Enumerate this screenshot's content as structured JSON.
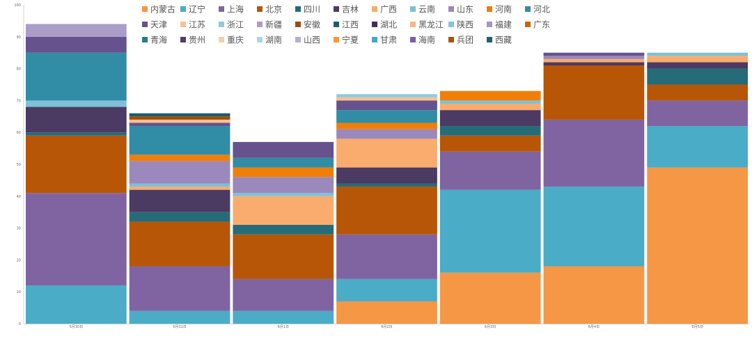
{
  "chart_data": {
    "type": "bar",
    "stacked": true,
    "categories": [
      "5月30日",
      "5月31日",
      "6月1日",
      "6月2日",
      "6月3日",
      "6月4日",
      "6月5日"
    ],
    "ylim": [
      0,
      100
    ],
    "yticks": [
      0,
      10,
      20,
      30,
      40,
      50,
      60,
      70,
      80,
      90,
      100
    ],
    "grid": false,
    "legend_position": "top",
    "series": [
      {
        "name": "内蒙古",
        "color": "#f59745",
        "values": [
          0,
          0,
          0,
          7,
          16,
          18,
          49
        ]
      },
      {
        "name": "辽宁",
        "color": "#4aacc6",
        "values": [
          12,
          4,
          4,
          7,
          26,
          25,
          13
        ]
      },
      {
        "name": "上海",
        "color": "#8064a2",
        "values": [
          29,
          14,
          10,
          14,
          12,
          21,
          8
        ]
      },
      {
        "name": "北京",
        "color": "#b75606",
        "values": [
          18,
          14,
          14,
          15,
          5,
          17,
          5
        ]
      },
      {
        "name": "四川",
        "color": "#266b78",
        "values": [
          1,
          3,
          3,
          1,
          3,
          0,
          5
        ]
      },
      {
        "name": "吉林",
        "color": "#4b3a62",
        "values": [
          8,
          7,
          0,
          5,
          5,
          1,
          2
        ]
      },
      {
        "name": "广西",
        "color": "#f9ac6e",
        "values": [
          0,
          1,
          9,
          9,
          2,
          1,
          2
        ]
      },
      {
        "name": "云南",
        "color": "#7ec0d7",
        "values": [
          2,
          1,
          1,
          0,
          1,
          0,
          1
        ]
      },
      {
        "name": "山东",
        "color": "#9b88bc",
        "values": [
          0,
          7,
          5,
          3,
          0,
          1,
          0
        ]
      },
      {
        "name": "河南",
        "color": "#f07f09",
        "values": [
          0,
          2,
          3,
          2,
          3,
          0,
          0
        ]
      },
      {
        "name": "河北",
        "color": "#318ca5",
        "values": [
          15,
          9,
          3,
          4,
          0,
          0,
          0
        ]
      },
      {
        "name": "天津",
        "color": "#66528c",
        "values": [
          5,
          1,
          5,
          3,
          0,
          1,
          0
        ]
      },
      {
        "name": "江苏",
        "color": "#fbc08e",
        "values": [
          0,
          1,
          0,
          1,
          0,
          0,
          0
        ]
      },
      {
        "name": "浙江",
        "color": "#8ccbe0",
        "values": [
          0,
          0,
          0,
          1,
          0,
          0,
          0
        ]
      },
      {
        "name": "新疆",
        "color": "#ac9cc8",
        "values": [
          4,
          0,
          0,
          0,
          0,
          0,
          0
        ]
      },
      {
        "name": "安徽",
        "color": "#a04c08",
        "values": [
          0,
          1,
          0,
          0,
          0,
          0,
          0
        ]
      },
      {
        "name": "江西",
        "color": "#1f5c69",
        "values": [
          0,
          1,
          0,
          0,
          0,
          0,
          0
        ]
      },
      {
        "name": "湖北",
        "color": "#3d2f54",
        "values": [
          0,
          0,
          0,
          0,
          0,
          0,
          0
        ]
      },
      {
        "name": "黑龙江",
        "color": "#f8b48a",
        "values": [
          0,
          0,
          0,
          0,
          0,
          0,
          0
        ]
      },
      {
        "name": "陕西",
        "color": "#82c6d6",
        "values": [
          0,
          0,
          0,
          0,
          0,
          0,
          0
        ]
      },
      {
        "name": "福建",
        "color": "#a694c7",
        "values": [
          0,
          0,
          0,
          0,
          0,
          0,
          0
        ]
      },
      {
        "name": "广东",
        "color": "#c96508",
        "values": [
          0,
          0,
          0,
          0,
          0,
          0,
          0
        ]
      },
      {
        "name": "青海",
        "color": "#2a7c84",
        "values": [
          0,
          0,
          0,
          0,
          0,
          0,
          0
        ]
      },
      {
        "name": "贵州",
        "color": "#503c66",
        "values": [
          0,
          0,
          0,
          0,
          0,
          0,
          0
        ]
      },
      {
        "name": "重庆",
        "color": "#f7cfa8",
        "values": [
          0,
          0,
          0,
          0,
          0,
          0,
          0
        ]
      },
      {
        "name": "湖南",
        "color": "#a9d6e6",
        "values": [
          0,
          0,
          0,
          0,
          0,
          0,
          0
        ]
      },
      {
        "name": "山西",
        "color": "#b7acd4",
        "values": [
          0,
          0,
          0,
          0,
          0,
          0,
          0
        ]
      },
      {
        "name": "宁夏",
        "color": "#f59a3c",
        "values": [
          0,
          0,
          0,
          0,
          0,
          0,
          0
        ]
      },
      {
        "name": "甘肃",
        "color": "#45a8c3",
        "values": [
          0,
          0,
          0,
          0,
          0,
          0,
          0
        ]
      },
      {
        "name": "海南",
        "color": "#7b5ea5",
        "values": [
          0,
          0,
          0,
          0,
          0,
          0,
          0
        ]
      },
      {
        "name": "兵团",
        "color": "#a95404",
        "values": [
          0,
          0,
          0,
          0,
          0,
          0,
          0
        ]
      },
      {
        "name": "西藏",
        "color": "#215f70",
        "values": [
          0,
          0,
          0,
          0,
          0,
          0,
          0
        ]
      }
    ]
  }
}
